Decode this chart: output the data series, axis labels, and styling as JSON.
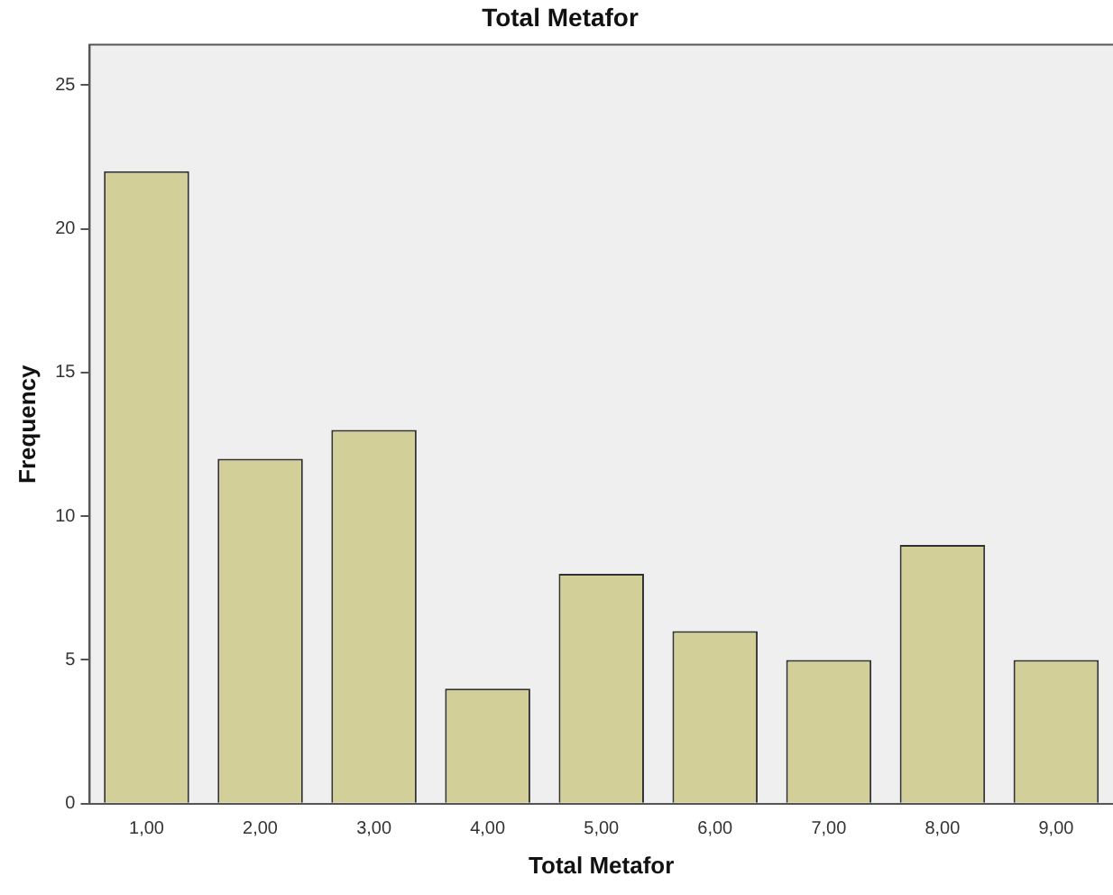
{
  "chart_data": {
    "type": "bar",
    "title": "Total Metafor",
    "xlabel": "Total Metafor",
    "ylabel": "Frequency",
    "categories": [
      "1,00",
      "2,00",
      "3,00",
      "4,00",
      "5,00",
      "6,00",
      "7,00",
      "8,00",
      "9,00"
    ],
    "values": [
      22,
      12,
      13,
      4,
      8,
      6,
      5,
      9,
      5
    ],
    "color": "#d3cf98",
    "ylim": [
      0,
      26.4
    ],
    "yticks": [
      0,
      5,
      10,
      15,
      20,
      25
    ],
    "grid": false,
    "legend": false
  }
}
